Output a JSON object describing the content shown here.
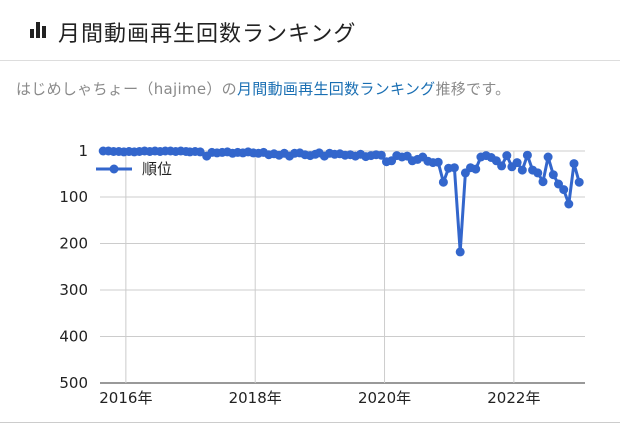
{
  "header": {
    "icon": "bar-chart-icon",
    "title": "月間動画再生回数ランキング"
  },
  "subtitle": {
    "prefix": "はじめしゃちょー（hajime）の",
    "link": "月間動画再生回数ランキング",
    "suffix": "推移です。"
  },
  "chart_data": {
    "type": "line",
    "title": "",
    "xlabel": "",
    "ylabel": "",
    "y_reversed": true,
    "ylim": [
      1,
      500
    ],
    "y_ticks": [
      1,
      100,
      200,
      300,
      400,
      500
    ],
    "x_ticks": [
      "2016年",
      "2018年",
      "2020年",
      "2022年"
    ],
    "x_tick_values": [
      2016,
      2018,
      2020,
      2022
    ],
    "xlim": [
      2015.6,
      2023.1
    ],
    "grid": true,
    "legend": "top-left",
    "series": [
      {
        "name": "順位",
        "color": "#3366cc",
        "points": [
          [
            2015.65,
            1
          ],
          [
            2015.73,
            1
          ],
          [
            2015.81,
            2
          ],
          [
            2015.89,
            2
          ],
          [
            2015.97,
            3
          ],
          [
            2016.05,
            2
          ],
          [
            2016.13,
            3
          ],
          [
            2016.21,
            2
          ],
          [
            2016.29,
            1
          ],
          [
            2016.37,
            2
          ],
          [
            2016.45,
            1
          ],
          [
            2016.53,
            2
          ],
          [
            2016.61,
            1
          ],
          [
            2016.69,
            1
          ],
          [
            2016.77,
            2
          ],
          [
            2016.85,
            1
          ],
          [
            2016.93,
            2
          ],
          [
            2016.99,
            3
          ],
          [
            2017.07,
            2
          ],
          [
            2017.15,
            3
          ],
          [
            2017.25,
            12
          ],
          [
            2017.33,
            4
          ],
          [
            2017.41,
            5
          ],
          [
            2017.49,
            4
          ],
          [
            2017.57,
            3
          ],
          [
            2017.65,
            6
          ],
          [
            2017.73,
            4
          ],
          [
            2017.81,
            5
          ],
          [
            2017.89,
            3
          ],
          [
            2017.97,
            5
          ],
          [
            2018.05,
            6
          ],
          [
            2018.13,
            4
          ],
          [
            2018.21,
            9
          ],
          [
            2018.29,
            7
          ],
          [
            2018.37,
            10
          ],
          [
            2018.45,
            6
          ],
          [
            2018.53,
            12
          ],
          [
            2018.61,
            6
          ],
          [
            2018.69,
            5
          ],
          [
            2018.77,
            9
          ],
          [
            2018.85,
            11
          ],
          [
            2018.93,
            8
          ],
          [
            2018.99,
            5
          ],
          [
            2019.07,
            12
          ],
          [
            2019.15,
            6
          ],
          [
            2019.23,
            8
          ],
          [
            2019.31,
            7
          ],
          [
            2019.39,
            10
          ],
          [
            2019.47,
            9
          ],
          [
            2019.55,
            12
          ],
          [
            2019.63,
            8
          ],
          [
            2019.71,
            13
          ],
          [
            2019.79,
            11
          ],
          [
            2019.87,
            9
          ],
          [
            2019.95,
            10
          ],
          [
            2020.03,
            24
          ],
          [
            2020.11,
            22
          ],
          [
            2020.19,
            11
          ],
          [
            2020.27,
            14
          ],
          [
            2020.35,
            12
          ],
          [
            2020.43,
            22
          ],
          [
            2020.51,
            19
          ],
          [
            2020.59,
            14
          ],
          [
            2020.67,
            23
          ],
          [
            2020.75,
            26
          ],
          [
            2020.83,
            25
          ],
          [
            2020.91,
            68
          ],
          [
            2020.99,
            38
          ],
          [
            2021.08,
            37
          ],
          [
            2021.17,
            218
          ],
          [
            2021.25,
            48
          ],
          [
            2021.33,
            37
          ],
          [
            2021.41,
            40
          ],
          [
            2021.49,
            14
          ],
          [
            2021.57,
            11
          ],
          [
            2021.65,
            15
          ],
          [
            2021.73,
            22
          ],
          [
            2021.81,
            33
          ],
          [
            2021.89,
            11
          ],
          [
            2021.97,
            35
          ],
          [
            2022.05,
            26
          ],
          [
            2022.13,
            42
          ],
          [
            2022.21,
            10
          ],
          [
            2022.29,
            42
          ],
          [
            2022.37,
            48
          ],
          [
            2022.45,
            67
          ],
          [
            2022.53,
            14
          ],
          [
            2022.61,
            52
          ],
          [
            2022.69,
            72
          ],
          [
            2022.77,
            84
          ],
          [
            2022.85,
            115
          ],
          [
            2022.93,
            28
          ],
          [
            2023.01,
            68
          ]
        ]
      }
    ]
  }
}
